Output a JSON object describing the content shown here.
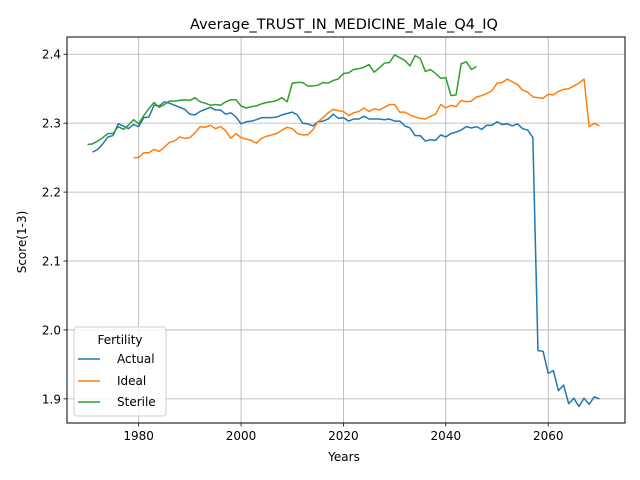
{
  "chart_data": {
    "type": "line",
    "title": "Average_TRUST_IN_MEDICINE_Male_Q4_IQ",
    "xlabel": "Years",
    "ylabel": "Score(1-3)",
    "xlim": [
      1966,
      2075
    ],
    "ylim": [
      1.865,
      2.425
    ],
    "xticks": [
      1980,
      2000,
      2020,
      2040,
      2060
    ],
    "yticks": [
      1.9,
      2.0,
      2.1,
      2.2,
      2.3,
      2.4
    ],
    "xtick_labels": [
      "1980",
      "2000",
      "2020",
      "2040",
      "2060"
    ],
    "ytick_labels": [
      "1.9",
      "2.0",
      "2.1",
      "2.2",
      "2.3",
      "2.4"
    ],
    "grid": true,
    "legend": {
      "title": "Fertility",
      "placement": "lower-left",
      "entries": [
        "Actual",
        "Ideal",
        "Sterile"
      ]
    },
    "series": [
      {
        "name": "Actual",
        "color": "#1f77b4",
        "x": [
          1971,
          1972,
          1973,
          1974,
          1975,
          1976,
          1977,
          1978,
          1979,
          1980,
          1981,
          1982,
          1983,
          1984,
          1985,
          1986,
          1987,
          1988,
          1989,
          1990,
          1991,
          1992,
          1993,
          1994,
          1995,
          1996,
          1997,
          1998,
          1999,
          2000,
          2001,
          2002,
          2003,
          2004,
          2005,
          2006,
          2007,
          2008,
          2009,
          2010,
          2011,
          2012,
          2013,
          2014,
          2015,
          2016,
          2017,
          2018,
          2019,
          2020,
          2021,
          2022,
          2023,
          2024,
          2025,
          2026,
          2027,
          2028,
          2029,
          2030,
          2031,
          2032,
          2033,
          2034,
          2035,
          2036,
          2037,
          2038,
          2039,
          2040,
          2041,
          2042,
          2043,
          2044,
          2045,
          2046,
          2047,
          2048,
          2049,
          2050,
          2051,
          2052,
          2053,
          2054,
          2055,
          2056,
          2057,
          2058,
          2059,
          2060,
          2061,
          2062,
          2063,
          2064,
          2065,
          2066,
          2067,
          2068,
          2069,
          2070
        ],
        "y": [
          2.258,
          2.262,
          2.27,
          2.28,
          2.282,
          2.299,
          2.296,
          2.292,
          2.298,
          2.295,
          2.308,
          2.309,
          2.326,
          2.325,
          2.331,
          2.329,
          2.326,
          2.323,
          2.32,
          2.313,
          2.312,
          2.317,
          2.32,
          2.323,
          2.319,
          2.319,
          2.313,
          2.315,
          2.309,
          2.299,
          2.302,
          2.303,
          2.305,
          2.308,
          2.308,
          2.308,
          2.309,
          2.312,
          2.314,
          2.316,
          2.312,
          2.3,
          2.299,
          2.296,
          2.302,
          2.303,
          2.306,
          2.313,
          2.307,
          2.308,
          2.303,
          2.306,
          2.306,
          2.31,
          2.306,
          2.306,
          2.306,
          2.305,
          2.306,
          2.303,
          2.303,
          2.296,
          2.293,
          2.282,
          2.282,
          2.274,
          2.276,
          2.275,
          2.283,
          2.28,
          2.285,
          2.287,
          2.29,
          2.295,
          2.293,
          2.295,
          2.291,
          2.297,
          2.297,
          2.302,
          2.298,
          2.299,
          2.296,
          2.299,
          2.292,
          2.29,
          2.279,
          1.97,
          1.969,
          1.937,
          1.941,
          1.912,
          1.92,
          1.893,
          1.901,
          1.889,
          1.901,
          1.892,
          1.903,
          1.9
        ]
      },
      {
        "name": "Ideal",
        "color": "#ff7f0e",
        "x": [
          1979,
          1980,
          1981,
          1982,
          1983,
          1984,
          1985,
          1986,
          1987,
          1988,
          1989,
          1990,
          1991,
          1992,
          1993,
          1994,
          1995,
          1996,
          1997,
          1998,
          1999,
          2000,
          2001,
          2002,
          2003,
          2004,
          2005,
          2006,
          2007,
          2008,
          2009,
          2010,
          2011,
          2012,
          2013,
          2014,
          2015,
          2016,
          2017,
          2018,
          2019,
          2020,
          2021,
          2022,
          2023,
          2024,
          2025,
          2026,
          2027,
          2028,
          2029,
          2030,
          2031,
          2032,
          2033,
          2034,
          2035,
          2036,
          2037,
          2038,
          2039,
          2040,
          2041,
          2042,
          2043,
          2044,
          2045,
          2046,
          2047,
          2048,
          2049,
          2050,
          2051,
          2052,
          2053,
          2054,
          2055,
          2056,
          2057,
          2058,
          2059,
          2060,
          2061,
          2062,
          2063,
          2064,
          2065,
          2066,
          2067,
          2068,
          2069,
          2070
        ],
        "y": [
          2.25,
          2.25,
          2.257,
          2.257,
          2.262,
          2.259,
          2.265,
          2.272,
          2.274,
          2.28,
          2.278,
          2.279,
          2.286,
          2.295,
          2.294,
          2.297,
          2.292,
          2.295,
          2.289,
          2.278,
          2.285,
          2.279,
          2.277,
          2.275,
          2.271,
          2.278,
          2.281,
          2.283,
          2.285,
          2.29,
          2.294,
          2.292,
          2.285,
          2.283,
          2.283,
          2.29,
          2.302,
          2.308,
          2.315,
          2.32,
          2.318,
          2.317,
          2.311,
          2.315,
          2.317,
          2.322,
          2.317,
          2.321,
          2.319,
          2.323,
          2.327,
          2.327,
          2.316,
          2.316,
          2.312,
          2.309,
          2.307,
          2.306,
          2.31,
          2.313,
          2.327,
          2.322,
          2.326,
          2.324,
          2.333,
          2.331,
          2.332,
          2.338,
          2.34,
          2.343,
          2.347,
          2.358,
          2.359,
          2.364,
          2.36,
          2.356,
          2.348,
          2.345,
          2.338,
          2.337,
          2.336,
          2.342,
          2.341,
          2.346,
          2.349,
          2.35,
          2.354,
          2.358,
          2.364,
          2.295,
          2.3,
          2.296
        ]
      },
      {
        "name": "Sterile",
        "color": "#2ca02c",
        "x": [
          1970,
          1971,
          1972,
          1973,
          1974,
          1975,
          1976,
          1977,
          1978,
          1979,
          1980,
          1981,
          1982,
          1983,
          1984,
          1985,
          1986,
          1987,
          1988,
          1989,
          1990,
          1991,
          1992,
          1993,
          1994,
          1995,
          1996,
          1997,
          1998,
          1999,
          2000,
          2001,
          2002,
          2003,
          2004,
          2005,
          2006,
          2007,
          2008,
          2009,
          2010,
          2011,
          2012,
          2013,
          2014,
          2015,
          2016,
          2017,
          2018,
          2019,
          2020,
          2021,
          2022,
          2023,
          2024,
          2025,
          2026,
          2027,
          2028,
          2029,
          2030,
          2031,
          2032,
          2033,
          2034,
          2035,
          2036,
          2037,
          2038,
          2039,
          2040,
          2041,
          2042,
          2043,
          2044,
          2045,
          2046
        ],
        "y": [
          2.269,
          2.27,
          2.274,
          2.279,
          2.285,
          2.285,
          2.295,
          2.291,
          2.297,
          2.305,
          2.299,
          2.311,
          2.321,
          2.33,
          2.323,
          2.327,
          2.332,
          2.332,
          2.333,
          2.334,
          2.333,
          2.337,
          2.331,
          2.329,
          2.326,
          2.327,
          2.326,
          2.331,
          2.334,
          2.334,
          2.325,
          2.322,
          2.324,
          2.325,
          2.328,
          2.33,
          2.331,
          2.333,
          2.337,
          2.331,
          2.358,
          2.359,
          2.359,
          2.354,
          2.354,
          2.355,
          2.359,
          2.358,
          2.362,
          2.364,
          2.372,
          2.373,
          2.378,
          2.379,
          2.381,
          2.385,
          2.374,
          2.38,
          2.387,
          2.388,
          2.399,
          2.395,
          2.391,
          2.383,
          2.398,
          2.394,
          2.375,
          2.378,
          2.372,
          2.365,
          2.366,
          2.34,
          2.341,
          2.386,
          2.389,
          2.378,
          2.382
        ]
      }
    ]
  }
}
